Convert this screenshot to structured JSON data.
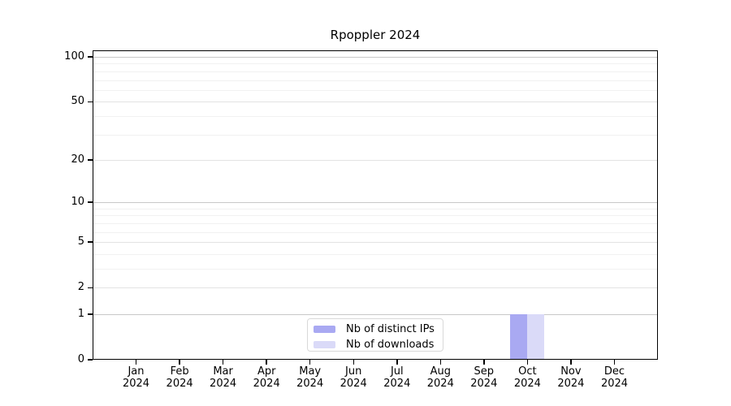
{
  "title": "Rpoppler 2024",
  "chart_data": {
    "type": "bar",
    "title": "Rpoppler 2024",
    "categories": [
      "Jan 2024",
      "Feb 2024",
      "Mar 2024",
      "Apr 2024",
      "May 2024",
      "Jun 2024",
      "Jul 2024",
      "Aug 2024",
      "Sep 2024",
      "Oct 2024",
      "Nov 2024",
      "Dec 2024"
    ],
    "series": [
      {
        "name": "Nb of distinct IPs",
        "color": "#a9a9f2",
        "values": [
          0,
          0,
          0,
          0,
          0,
          0,
          0,
          0,
          0,
          1,
          0,
          0
        ]
      },
      {
        "name": "Nb of downloads",
        "color": "#dadaf8",
        "values": [
          0,
          0,
          0,
          0,
          0,
          0,
          0,
          0,
          0,
          1,
          0,
          0
        ]
      }
    ],
    "xlabel": "",
    "ylabel": "",
    "y_scale": "log1p",
    "ylim": [
      0,
      100
    ],
    "y_ticks": [
      100,
      50,
      20,
      10,
      5,
      2,
      1,
      0
    ],
    "grid": "horizontal",
    "gridlines": {
      "power_values": [
        1,
        10,
        100
      ],
      "major_values": [
        2,
        5,
        20,
        50
      ],
      "minor_values": [
        3,
        4,
        6,
        7,
        8,
        9,
        30,
        40,
        60,
        70,
        80,
        90
      ]
    },
    "legend_position": "inside-bottom-center"
  },
  "legend": {
    "items": [
      {
        "label": "Nb of distinct IPs",
        "swatch_color": "#a9a9f2"
      },
      {
        "label": "Nb of downloads",
        "swatch_color": "#dadaf8"
      }
    ]
  },
  "colors": {
    "background": "#ffffff",
    "axis": "#000000",
    "grid_power": "#c8c8c8",
    "grid_major": "#e3e3e3",
    "grid_minor": "#f1f1f1",
    "legend_border": "#d9d9d9",
    "text": "#000000"
  }
}
